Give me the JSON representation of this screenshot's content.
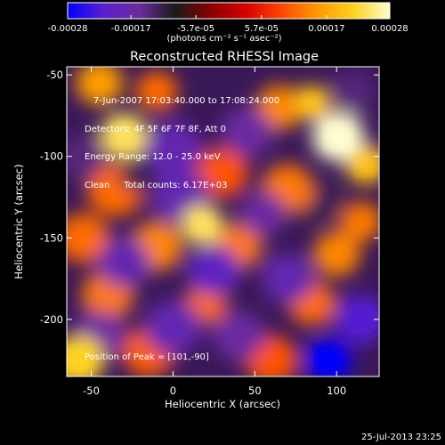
{
  "colorbar": {
    "ticks": [
      "-0.00028",
      "-0.00017",
      "-5.7e-05",
      "5.7e-05",
      "0.00017",
      "0.00028"
    ],
    "tick_values": [
      -0.00028,
      -0.00017,
      -5.7e-05,
      5.7e-05,
      0.00017,
      0.00028
    ],
    "range": [
      -0.00028,
      0.00028
    ],
    "unit_label": "(photons cm⁻² s⁻¹ asec⁻²)",
    "colors": [
      "#0000ff",
      "#5a1fd0",
      "#6b2b9c",
      "#1a1a1a",
      "#8b0000",
      "#d80000",
      "#ff4a00",
      "#ff9a00",
      "#ffd21e",
      "#ffffd0"
    ]
  },
  "chart_data": {
    "type": "heatmap",
    "title": "Reconstructed RHESSI Image",
    "xlabel": "Heliocentric X (arcsec)",
    "ylabel": "Heliocentric Y (arcsec)",
    "xlim": [
      -65,
      126
    ],
    "ylim": [
      -235,
      -45
    ],
    "x_ticks": [
      "-50",
      "0",
      "50",
      "100"
    ],
    "y_ticks": [
      "-50",
      "-100",
      "-150",
      "-200"
    ],
    "x_tick_values": [
      -50,
      0,
      50,
      100
    ],
    "y_tick_values": [
      -50,
      -100,
      -150,
      -200
    ],
    "annotations": [
      "7-Jun-2007 17:03:40.000 to 17:08:24.000",
      "Detectors: 4F 5F 6F 7F 8F, Att 0",
      "Energy Range: 12.0 - 25.0 keV",
      "Clean     Total counts: 6.17E+03"
    ],
    "peak_label": "Position of Peak = [101,-90]",
    "peak": [
      101,
      -90
    ],
    "blobs": [
      {
        "x": 101,
        "y": -88,
        "v": 0.00028,
        "s": 10
      },
      {
        "x": -30,
        "y": -87,
        "v": 0.00024,
        "s": 9
      },
      {
        "x": 118,
        "y": -105,
        "v": 0.0002,
        "s": 8
      },
      {
        "x": 85,
        "y": -67,
        "v": 0.0002,
        "s": 7
      },
      {
        "x": 18,
        "y": -142,
        "v": 0.00024,
        "s": 8
      },
      {
        "x": -58,
        "y": -225,
        "v": 0.00022,
        "s": 10
      },
      {
        "x": -45,
        "y": -55,
        "v": 0.00016,
        "s": 9
      },
      {
        "x": -10,
        "y": -60,
        "v": 0.00012,
        "s": 8
      },
      {
        "x": 65,
        "y": -70,
        "v": 0.00014,
        "s": 9
      },
      {
        "x": -35,
        "y": -120,
        "v": 0.00012,
        "s": 11
      },
      {
        "x": 30,
        "y": -110,
        "v": 0.0001,
        "s": 10
      },
      {
        "x": 70,
        "y": -120,
        "v": 0.00013,
        "s": 10
      },
      {
        "x": -55,
        "y": -150,
        "v": 0.00012,
        "s": 10
      },
      {
        "x": -10,
        "y": -155,
        "v": 0.00014,
        "s": 10
      },
      {
        "x": 40,
        "y": -155,
        "v": 0.00013,
        "s": 9
      },
      {
        "x": 100,
        "y": -160,
        "v": 0.00014,
        "s": 9
      },
      {
        "x": -40,
        "y": -185,
        "v": 0.00013,
        "s": 10
      },
      {
        "x": 20,
        "y": -190,
        "v": 0.00012,
        "s": 8
      },
      {
        "x": 85,
        "y": -190,
        "v": 0.00012,
        "s": 9
      },
      {
        "x": -15,
        "y": -220,
        "v": 0.00011,
        "s": 10
      },
      {
        "x": 60,
        "y": -225,
        "v": 0.0001,
        "s": 10
      },
      {
        "x": 115,
        "y": -140,
        "v": 0.00013,
        "s": 8
      },
      {
        "x": 0,
        "y": -95,
        "v": -0.00018,
        "s": 11
      },
      {
        "x": 45,
        "y": -85,
        "v": -0.00016,
        "s": 10
      },
      {
        "x": -55,
        "y": -100,
        "v": -0.00014,
        "s": 9
      },
      {
        "x": 5,
        "y": -125,
        "v": -0.00018,
        "s": 11
      },
      {
        "x": 55,
        "y": -135,
        "v": -0.00016,
        "s": 9
      },
      {
        "x": -30,
        "y": -165,
        "v": -0.00018,
        "s": 10
      },
      {
        "x": 25,
        "y": -170,
        "v": -0.0002,
        "s": 10
      },
      {
        "x": 70,
        "y": -175,
        "v": -0.00018,
        "s": 10
      },
      {
        "x": 115,
        "y": -200,
        "v": -0.00022,
        "s": 10
      },
      {
        "x": 0,
        "y": -205,
        "v": -0.00018,
        "s": 11
      },
      {
        "x": 40,
        "y": -210,
        "v": -0.00016,
        "s": 10
      },
      {
        "x": -45,
        "y": -210,
        "v": -0.00016,
        "s": 10
      },
      {
        "x": 95,
        "y": -225,
        "v": -0.00028,
        "s": 9
      },
      {
        "x": 110,
        "y": -60,
        "v": -0.00014,
        "s": 8
      },
      {
        "x": -20,
        "y": -110,
        "v": -0.00012,
        "s": 8
      },
      {
        "x": 90,
        "y": -130,
        "v": -0.00012,
        "s": 8
      }
    ]
  },
  "timestamp": "25-Jul-2013 23:25"
}
